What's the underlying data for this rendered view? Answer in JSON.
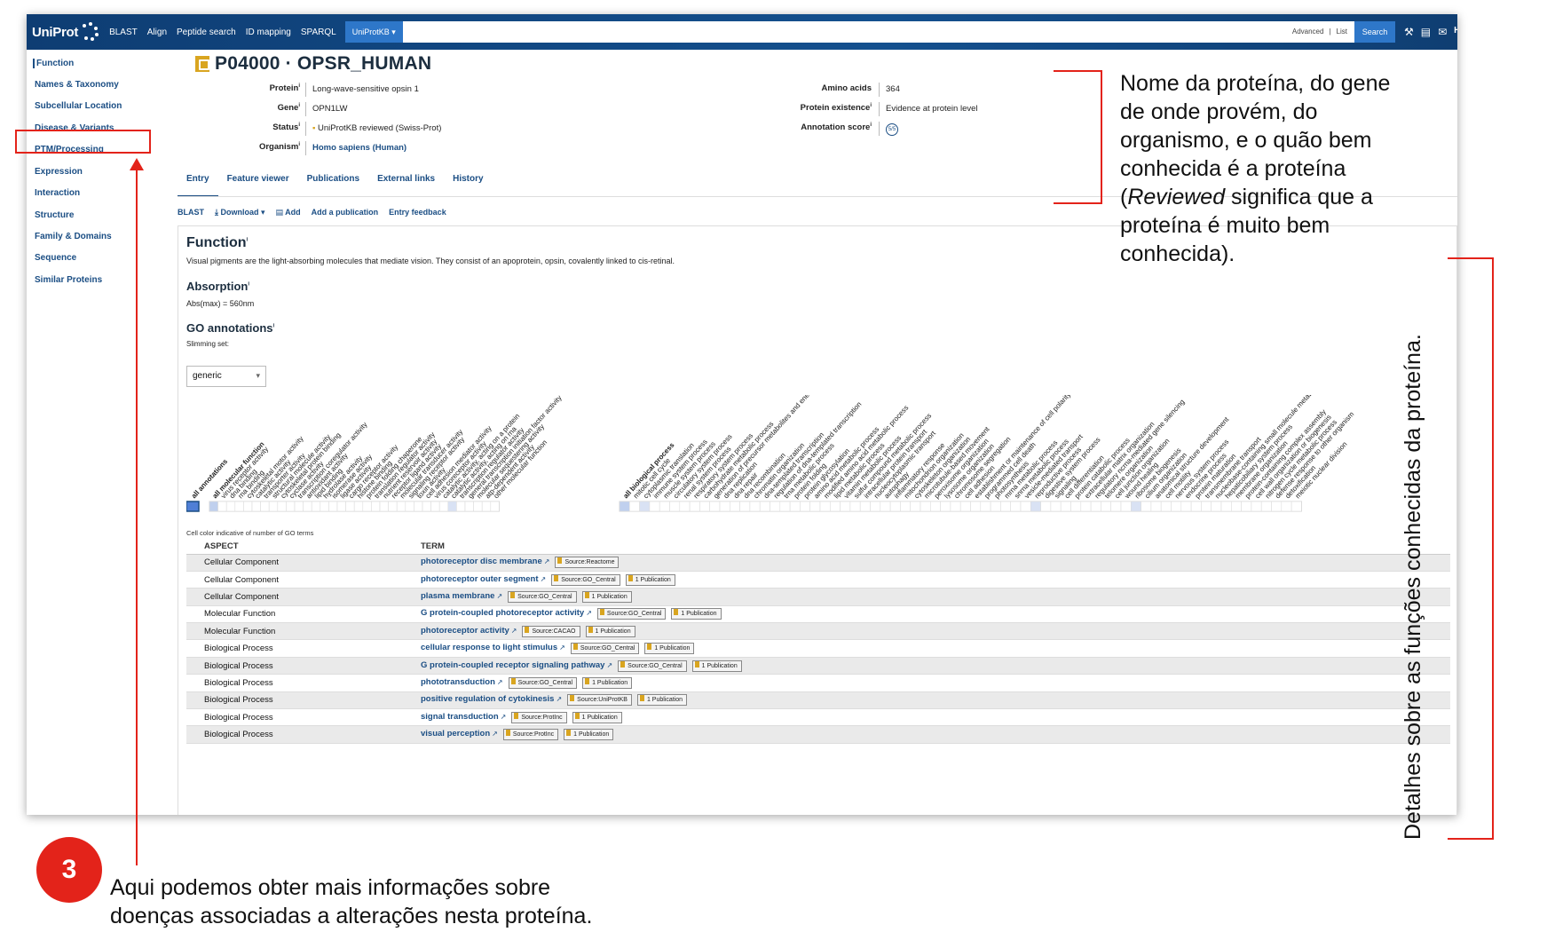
{
  "topbar": {
    "logo": "UniProt",
    "links": [
      "BLAST",
      "Align",
      "Peptide search",
      "ID mapping",
      "SPARQL"
    ],
    "db_select": "UniProtKB ▾",
    "search_advanced": "Advanced",
    "search_list": "List",
    "search_button": "Search",
    "icons": [
      "tool-icon",
      "basket-icon",
      "mail-icon"
    ],
    "cut_text": "He"
  },
  "sidebar": {
    "items": [
      {
        "label": "Function"
      },
      {
        "label": "Names & Taxonomy"
      },
      {
        "label": "Subcellular Location"
      },
      {
        "label": "Disease & Variants"
      },
      {
        "label": "PTM/Processing"
      },
      {
        "label": "Expression"
      },
      {
        "label": "Interaction"
      },
      {
        "label": "Structure"
      },
      {
        "label": "Family & Domains"
      },
      {
        "label": "Sequence"
      },
      {
        "label": "Similar Proteins"
      }
    ]
  },
  "entry": {
    "title": "P04000 · OPSR_HUMAN",
    "protein_label": "Protein",
    "protein_value": "Long-wave-sensitive opsin 1",
    "gene_label": "Gene",
    "gene_value": "OPN1LW",
    "status_label": "Status",
    "status_value": "UniProtKB reviewed (Swiss-Prot)",
    "organism_label": "Organism",
    "organism_value": "Homo sapiens (Human)",
    "aa_label": "Amino acids",
    "aa_value": "364",
    "existence_label": "Protein existence",
    "existence_value": "Evidence at protein level",
    "score_label": "Annotation score",
    "score_value": "5/5"
  },
  "tabs": [
    "Entry",
    "Feature viewer",
    "Publications",
    "External links",
    "History"
  ],
  "actions": [
    "BLAST",
    "Download ▾",
    "Add",
    "Add a publication",
    "Entry feedback"
  ],
  "function": {
    "title": "Function",
    "text": "Visual pigments are the light-absorbing molecules that mediate vision. They consist of an apoprotein, opsin, covalently linked to cis-retinal.",
    "absorption_title": "Absorption",
    "absorption_text": "Abs(max) = 560nm",
    "go_title": "GO annotations",
    "slimming_label": "Slimming set:",
    "slimming_value": "generic",
    "cell_note": "Cell color indicative of number of GO terms",
    "ribbon_group1": [
      "all annotations"
    ],
    "ribbon_group2": [
      "all molecular function",
      "virus receptor activity",
      "dna binding",
      "rna binding",
      "cytoskeletal motor activity",
      "catalytic activity",
      "transporter activity",
      "structural molecule activity",
      "cytoskeletal protein binding",
      "cyclase activity",
      "transcription coregulator activity",
      "antioxidant activity",
      "lipid binding",
      "hydrolase activity",
      "isomerase activity",
      "ligase activity",
      "cargo receptor activity",
      "histone binding",
      "protein folding chaperone",
      "translation regulator activity",
      "nutrient reservoir activity",
      "receptor ligand activity",
      "molecular transducer activity",
      "signaling receptor activity",
      "toxin activity",
      "cell adhesion mediator activity",
      "virus coreceptor activity",
      "catalytic activity, acting on a protein",
      "catalytic activity, acting on rna",
      "transcription regulator activity",
      "general transcription initiation factor activity",
      "molecular sequestering activity",
      "atp-dependent activity",
      "other molecular function"
    ],
    "ribbon_group3": [
      "all biological process",
      "mitotic cell cycle",
      "cytoplasmic translation",
      "immune system process",
      "muscle system process",
      "circulatory system process",
      "renal system process",
      "respiratory system process",
      "carbohydrate metabolic process",
      "generation of precursor metabolites and energy",
      "dna replication",
      "dna repair",
      "dna recombination",
      "chromatin organization",
      "dna-templated transcription",
      "regulation of dna-templated transcription",
      "trna metabolic process",
      "protein folding",
      "protein glycosylation",
      "amino acid metabolic process",
      "modified amino acid metabolic process",
      "lipid metabolic process",
      "vitamin metabolic process",
      "sulfur compound metabolic process",
      "intracellular protein transport",
      "nucleocytoplasmic transport",
      "autophagy",
      "inflammatory response",
      "mitochondrion organization",
      "cytoskeleton organization",
      "microtubule-based movement",
      "peroxisome organization",
      "lysosome organization",
      "chromosome segregation",
      "cell adhesion",
      "establishment or maintenance of cell polarity",
      "programmed cell death",
      "photosynthesis",
      "mrna metabolic process",
      "snrna metabolic process",
      "vesicle-mediated transport",
      "reproductive process",
      "digestive system process",
      "signaling",
      "cell differentiation",
      "protein catabolic process",
      "extracellular matrix organization",
      "regulatory ncrna-mediated gene silencing",
      "telomere organization",
      "cell junction organization",
      "wound healing",
      "ribosome biogenesis",
      "cilium organization",
      "anatomical structure development",
      "cell motility",
      "nervous system process",
      "endocrine process",
      "protein maturation",
      "transmembrane transport",
      "nucleobase-containing small molecule metabolic process",
      "hepaticobiliary system process",
      "membrane organization",
      "protein-containing complex assembly",
      "cell wall organization or biogenesis",
      "nitrogen cycle metabolic process",
      "defense response to other organism",
      "detoxification",
      "meiotic nuclear division"
    ]
  },
  "go_table": {
    "headers": [
      "ASPECT",
      "TERM"
    ],
    "rows": [
      {
        "aspect": "Cellular Component",
        "term": "photoreceptor disc membrane",
        "source": "Source:Reactome",
        "pub": ""
      },
      {
        "aspect": "Cellular Component",
        "term": "photoreceptor outer segment",
        "source": "Source:GO_Central",
        "pub": "1 Publication"
      },
      {
        "aspect": "Cellular Component",
        "term": "plasma membrane",
        "source": "Source:GO_Central",
        "pub": "1 Publication"
      },
      {
        "aspect": "Molecular Function",
        "term": "G protein-coupled photoreceptor activity",
        "source": "Source:GO_Central",
        "pub": "1 Publication"
      },
      {
        "aspect": "Molecular Function",
        "term": "photoreceptor activity",
        "source": "Source:CACAO",
        "pub": "1 Publication"
      },
      {
        "aspect": "Biological Process",
        "term": "cellular response to light stimulus",
        "source": "Source:GO_Central",
        "pub": "1 Publication"
      },
      {
        "aspect": "Biological Process",
        "term": "G protein-coupled receptor signaling pathway",
        "source": "Source:GO_Central",
        "pub": "1 Publication"
      },
      {
        "aspect": "Biological Process",
        "term": "phototransduction",
        "source": "Source:GO_Central",
        "pub": "1 Publication"
      },
      {
        "aspect": "Biological Process",
        "term": "positive regulation of cytokinesis",
        "source": "Source:UniProtKB",
        "pub": "1 Publication"
      },
      {
        "aspect": "Biological Process",
        "term": "signal transduction",
        "source": "Source:ProtInc",
        "pub": "1 Publication"
      },
      {
        "aspect": "Biological Process",
        "term": "visual perception",
        "source": "Source:ProtInc",
        "pub": "1 Publication"
      }
    ]
  },
  "annotations": {
    "protein_note_lines": [
      "Nome da proteína, do gene",
      "de onde provém, do",
      "organismo, e o quão bem",
      "conhecida é a proteína",
      "(Reviewed significa que a",
      "proteína é muito bem",
      "conhecida)."
    ],
    "reviewed_word": "Reviewed",
    "side_note": "Detalhes sobre as funções conhecidas da proteína.",
    "step_number": "3",
    "step_lines": [
      "Aqui podemos obter mais informações sobre",
      "doenças associadas a alterações nesta proteína."
    ],
    "accent_color": "#e3231a"
  },
  "colors": {
    "brand_dark": "#0e3d73",
    "link": "#1b4e84",
    "accent_button": "#2e77c9",
    "reviewed_gold": "#d9a520"
  }
}
